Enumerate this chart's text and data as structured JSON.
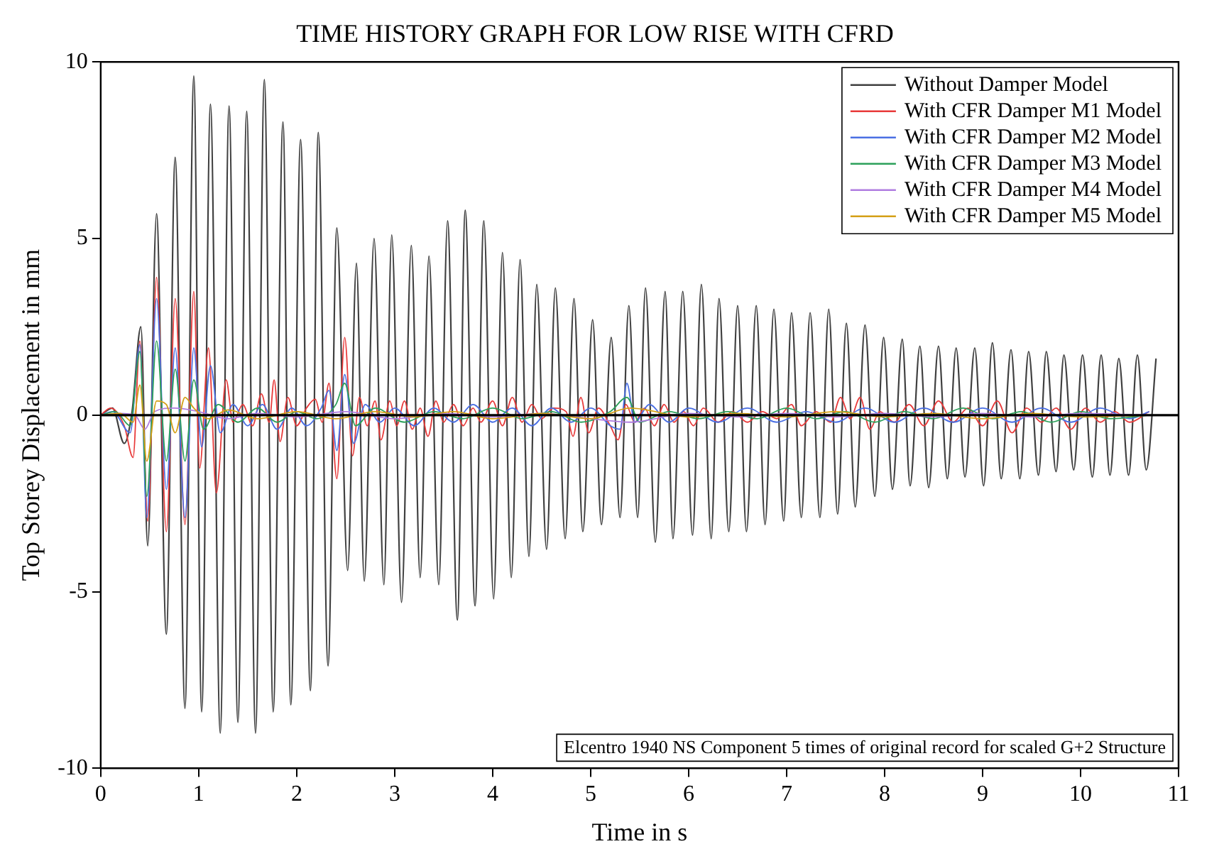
{
  "chart_data": {
    "type": "line",
    "title": "TIME HISTORY GRAPH FOR LOW RISE WITH CFRD",
    "xlabel": "Time in s",
    "ylabel": "Top Storey Displacement in mm",
    "xlim": [
      0,
      11
    ],
    "xticks": [
      0,
      1,
      2,
      3,
      4,
      5,
      6,
      7,
      8,
      9,
      10,
      11
    ],
    "ylim": [
      -10,
      10
    ],
    "yticks": [
      -10,
      -5,
      0,
      5,
      10
    ],
    "grid": false,
    "legend": "top right",
    "marker": "none",
    "line_style": "solid",
    "ref_lines": [
      {
        "axis": "y",
        "value": 0,
        "color": "#000000"
      }
    ],
    "annotations": [
      "Elcentro 1940 NS Component 5 times of original record for scaled G+2 Structure"
    ],
    "series": [
      {
        "name": "Without Damper Model",
        "color": "#404040",
        "x": [
          0,
          0.12,
          0.24,
          0.32,
          0.41,
          0.48,
          0.57,
          0.67,
          0.76,
          0.86,
          0.95,
          1.03,
          1.12,
          1.22,
          1.31,
          1.4,
          1.49,
          1.58,
          1.67,
          1.76,
          1.86,
          1.94,
          2.04,
          2.14,
          2.22,
          2.32,
          2.41,
          2.52,
          2.61,
          2.69,
          2.79,
          2.89,
          2.97,
          3.07,
          3.17,
          3.26,
          3.35,
          3.45,
          3.54,
          3.64,
          3.72,
          3.82,
          3.91,
          4.01,
          4.1,
          4.19,
          4.28,
          4.37,
          4.45,
          4.55,
          4.64,
          4.74,
          4.83,
          4.92,
          5.02,
          5.11,
          5.21,
          5.3,
          5.39,
          5.48,
          5.56,
          5.66,
          5.76,
          5.84,
          5.94,
          6.04,
          6.13,
          6.23,
          6.31,
          6.41,
          6.5,
          6.59,
          6.69,
          6.78,
          6.87,
          6.97,
          7.05,
          7.15,
          7.24,
          7.34,
          7.43,
          7.52,
          7.61,
          7.7,
          7.8,
          7.9,
          7.99,
          8.08,
          8.18,
          8.26,
          8.36,
          8.45,
          8.55,
          8.64,
          8.73,
          8.82,
          8.92,
          9.01,
          9.1,
          9.19,
          9.29,
          9.38,
          9.47,
          9.57,
          9.65,
          9.75,
          9.83,
          9.93,
          10.02,
          10.12,
          10.21,
          10.3,
          10.39,
          10.49,
          10.58,
          10.67,
          10.77
        ],
        "values": [
          0,
          0.2,
          -0.8,
          0.1,
          2.5,
          -3.7,
          5.7,
          -6.2,
          7.3,
          -8.3,
          9.6,
          -8.4,
          8.8,
          -9,
          8.75,
          -8.7,
          8.6,
          -9,
          9.5,
          -8.4,
          8.3,
          -8.2,
          7.8,
          -7.8,
          8,
          -7.1,
          5.3,
          -4.4,
          4.3,
          -4.7,
          5,
          -4.8,
          5.1,
          -5.3,
          4.8,
          -4.6,
          4.5,
          -4.8,
          5.5,
          -5.8,
          5.8,
          -5.4,
          5.5,
          -5.2,
          4.6,
          -4.6,
          4.4,
          -4,
          3.7,
          -3.8,
          3.6,
          -3.5,
          3.3,
          -3.3,
          2.7,
          -3.1,
          2.2,
          -2.9,
          3.1,
          -2.9,
          3.6,
          -3.6,
          3.5,
          -3.5,
          3.5,
          -3.4,
          3.7,
          -3.5,
          3.3,
          -3.3,
          3.1,
          -3.3,
          3.1,
          -3.1,
          3,
          -3,
          2.9,
          -2.9,
          2.9,
          -2.9,
          3,
          -2.8,
          2.6,
          -2.6,
          2.55,
          -2.3,
          2.2,
          -2.1,
          2.15,
          -2,
          1.95,
          -2.05,
          1.95,
          -1.8,
          1.9,
          -1.75,
          1.9,
          -2,
          2.05,
          -1.8,
          1.85,
          -1.8,
          1.8,
          -1.7,
          1.8,
          -1.6,
          1.7,
          -1.55,
          1.7,
          -1.75,
          1.7,
          -1.7,
          1.6,
          -1.7,
          1.7,
          -1.55,
          1.6
        ]
      },
      {
        "name": "With CFR Damper M1 Model",
        "color": "#e83a3a",
        "x": [
          0,
          0.1,
          0.24,
          0.33,
          0.4,
          0.48,
          0.57,
          0.67,
          0.76,
          0.86,
          0.95,
          1.01,
          1.1,
          1.18,
          1.28,
          1.35,
          1.45,
          1.55,
          1.64,
          1.72,
          1.77,
          1.83,
          1.91,
          2.0,
          2.1,
          2.19,
          2.26,
          2.33,
          2.41,
          2.49,
          2.57,
          2.64,
          2.72,
          2.8,
          2.86,
          2.95,
          3.02,
          3.1,
          3.18,
          3.26,
          3.34,
          3.42,
          3.5,
          3.6,
          3.7,
          3.8,
          3.88,
          4.0,
          4.1,
          4.2,
          4.3,
          4.4,
          4.5,
          4.62,
          4.75,
          4.82,
          4.9,
          4.98,
          5.08,
          5.2,
          5.28,
          5.36,
          5.45,
          5.55,
          5.65,
          5.75,
          5.85,
          5.95,
          6.05,
          6.15,
          6.3,
          6.45,
          6.6,
          6.75,
          6.9,
          7.05,
          7.15,
          7.3,
          7.45,
          7.55,
          7.65,
          7.75,
          7.85,
          7.95,
          8.1,
          8.25,
          8.4,
          8.55,
          8.7,
          8.85,
          9.0,
          9.15,
          9.3,
          9.45,
          9.6,
          9.75,
          9.9,
          10.05,
          10.2,
          10.35,
          10.5,
          10.7
        ],
        "values": [
          0,
          0.2,
          -0.3,
          -1.2,
          2.1,
          -3,
          3.9,
          -3.3,
          3.3,
          -3.1,
          3.5,
          -1.5,
          1.9,
          -2.2,
          1,
          -0.2,
          0.3,
          -0.3,
          0.6,
          -0.2,
          1,
          -0.75,
          0.5,
          -0.3,
          0.2,
          0.45,
          -0.2,
          0.9,
          -1.8,
          2.2,
          -1.15,
          0.5,
          -0.3,
          0.4,
          -0.7,
          0.4,
          -0.3,
          0.4,
          -0.4,
          0.2,
          -0.6,
          0.4,
          -0.2,
          0.3,
          -0.3,
          0.2,
          -0.2,
          0.4,
          -0.3,
          0.5,
          -0.2,
          0.3,
          -0.1,
          0.2,
          0.1,
          -0.6,
          0.5,
          -0.5,
          0.2,
          -0.3,
          -0.7,
          0.3,
          -0.2,
          0.2,
          -0.3,
          0.3,
          -0.2,
          0.1,
          -0.3,
          0.2,
          -0.2,
          0.1,
          -0.2,
          0.1,
          -0.1,
          0.3,
          -0.3,
          0.1,
          -0.2,
          0.5,
          -0.1,
          0.5,
          -0.4,
          0.1,
          -0.2,
          0.3,
          -0.3,
          0.4,
          -0.2,
          0.2,
          -0.3,
          0.4,
          -0.5,
          0.2,
          -0.2,
          0.2,
          -0.4,
          0.2,
          -0.2,
          0.1,
          -0.2,
          0.1
        ]
      },
      {
        "name": "With CFR Damper M2 Model",
        "color": "#4a6fe3",
        "x": [
          0,
          0.12,
          0.3,
          0.4,
          0.47,
          0.57,
          0.67,
          0.76,
          0.86,
          0.95,
          1.03,
          1.12,
          1.22,
          1.35,
          1.5,
          1.65,
          1.8,
          1.95,
          2.1,
          2.25,
          2.33,
          2.41,
          2.49,
          2.58,
          2.7,
          2.85,
          3.0,
          3.2,
          3.4,
          3.6,
          3.8,
          4.0,
          4.2,
          4.4,
          4.6,
          4.8,
          5.0,
          5.2,
          5.3,
          5.37,
          5.45,
          5.6,
          5.8,
          6.0,
          6.3,
          6.6,
          6.9,
          7.2,
          7.5,
          7.8,
          8.1,
          8.4,
          8.7,
          9.0,
          9.3,
          9.6,
          9.9,
          10.2,
          10.5,
          10.7
        ],
        "values": [
          0,
          0.1,
          -0.5,
          2,
          -2.9,
          3.3,
          -2.1,
          1.9,
          -2.9,
          1.9,
          -0.9,
          1.4,
          -0.5,
          0.3,
          -0.3,
          0.3,
          -0.4,
          0.2,
          -0.3,
          0.2,
          0.7,
          -1,
          1.15,
          -0.8,
          0.3,
          -0.2,
          0.2,
          -0.3,
          0.2,
          -0.2,
          0.3,
          -0.2,
          0.2,
          -0.3,
          0.2,
          -0.2,
          0.2,
          -0.3,
          -0.4,
          0.9,
          -0.2,
          0.3,
          -0.2,
          0.2,
          -0.2,
          0.2,
          -0.2,
          0.1,
          -0.2,
          0.2,
          -0.2,
          0.2,
          -0.2,
          0.2,
          -0.2,
          0.2,
          -0.2,
          0.2,
          -0.1,
          0.1
        ]
      },
      {
        "name": "With CFR Damper M3 Model",
        "color": "#2ca05a",
        "x": [
          0,
          0.15,
          0.3,
          0.4,
          0.47,
          0.57,
          0.67,
          0.76,
          0.86,
          0.95,
          1.05,
          1.2,
          1.4,
          1.6,
          1.8,
          2.0,
          2.2,
          2.4,
          2.49,
          2.6,
          2.8,
          3.1,
          3.4,
          3.7,
          4.0,
          4.3,
          4.6,
          4.9,
          5.2,
          5.37,
          5.5,
          5.8,
          6.1,
          6.4,
          6.7,
          7.0,
          7.3,
          7.6,
          7.9,
          8.2,
          8.5,
          8.8,
          9.1,
          9.4,
          9.7,
          10.0,
          10.3,
          10.7
        ],
        "values": [
          0,
          0.1,
          -0.3,
          1.8,
          -2.3,
          2.1,
          -1.3,
          1.3,
          -1.3,
          1,
          -0.4,
          0.3,
          -0.2,
          0.2,
          -0.2,
          0.1,
          -0.1,
          0.3,
          0.9,
          -0.3,
          0.2,
          -0.2,
          0.1,
          -0.1,
          0.2,
          -0.1,
          0.1,
          -0.2,
          0.1,
          0.5,
          -0.2,
          0.1,
          -0.1,
          0.1,
          -0.1,
          0.2,
          -0.1,
          0.1,
          -0.2,
          0.1,
          -0.1,
          0.2,
          -0.1,
          0.1,
          -0.2,
          0.1,
          -0.1,
          0
        ]
      },
      {
        "name": "With CFR Damper M4 Model",
        "color": "#b07de0",
        "x": [
          0,
          0.2,
          0.35,
          0.45,
          0.55,
          0.75,
          1.0,
          1.3,
          1.6,
          2.0,
          2.5,
          3.0,
          3.5,
          4.0,
          4.5,
          5.0,
          5.4,
          6.0,
          6.5,
          7.0,
          7.5,
          8.0,
          8.5,
          9.0,
          9.5,
          10.0,
          10.7
        ],
        "values": [
          0,
          0.05,
          0,
          -0.4,
          0.1,
          0.2,
          0.1,
          -0.1,
          0.05,
          -0.05,
          0.1,
          -0.1,
          0.05,
          -0.05,
          0.05,
          -0.1,
          -0.2,
          0.05,
          -0.05,
          0.05,
          -0.05,
          0.05,
          -0.05,
          0.05,
          -0.05,
          0.05,
          0
        ]
      },
      {
        "name": "With CFR Damper M5 Model",
        "color": "#d4a017",
        "x": [
          0,
          0.2,
          0.33,
          0.4,
          0.47,
          0.57,
          0.67,
          0.76,
          0.86,
          0.95,
          1.1,
          1.3,
          1.6,
          2.0,
          2.4,
          2.8,
          3.2,
          3.6,
          4.0,
          4.5,
          5.0,
          5.4,
          6.0,
          6.5,
          7.0,
          7.5,
          8.0,
          8.5,
          9.0,
          9.5,
          10.0,
          10.7
        ],
        "values": [
          0,
          0.05,
          -0.2,
          0.85,
          -1.3,
          0.4,
          0.3,
          -0.5,
          0.5,
          0.2,
          -0.1,
          0.15,
          -0.1,
          0.1,
          -0.1,
          0.1,
          -0.05,
          0.1,
          -0.1,
          0.05,
          -0.1,
          0.2,
          -0.05,
          0.05,
          -0.05,
          0.1,
          -0.05,
          0.05,
          -0.1,
          0.05,
          -0.05,
          0
        ]
      }
    ]
  }
}
